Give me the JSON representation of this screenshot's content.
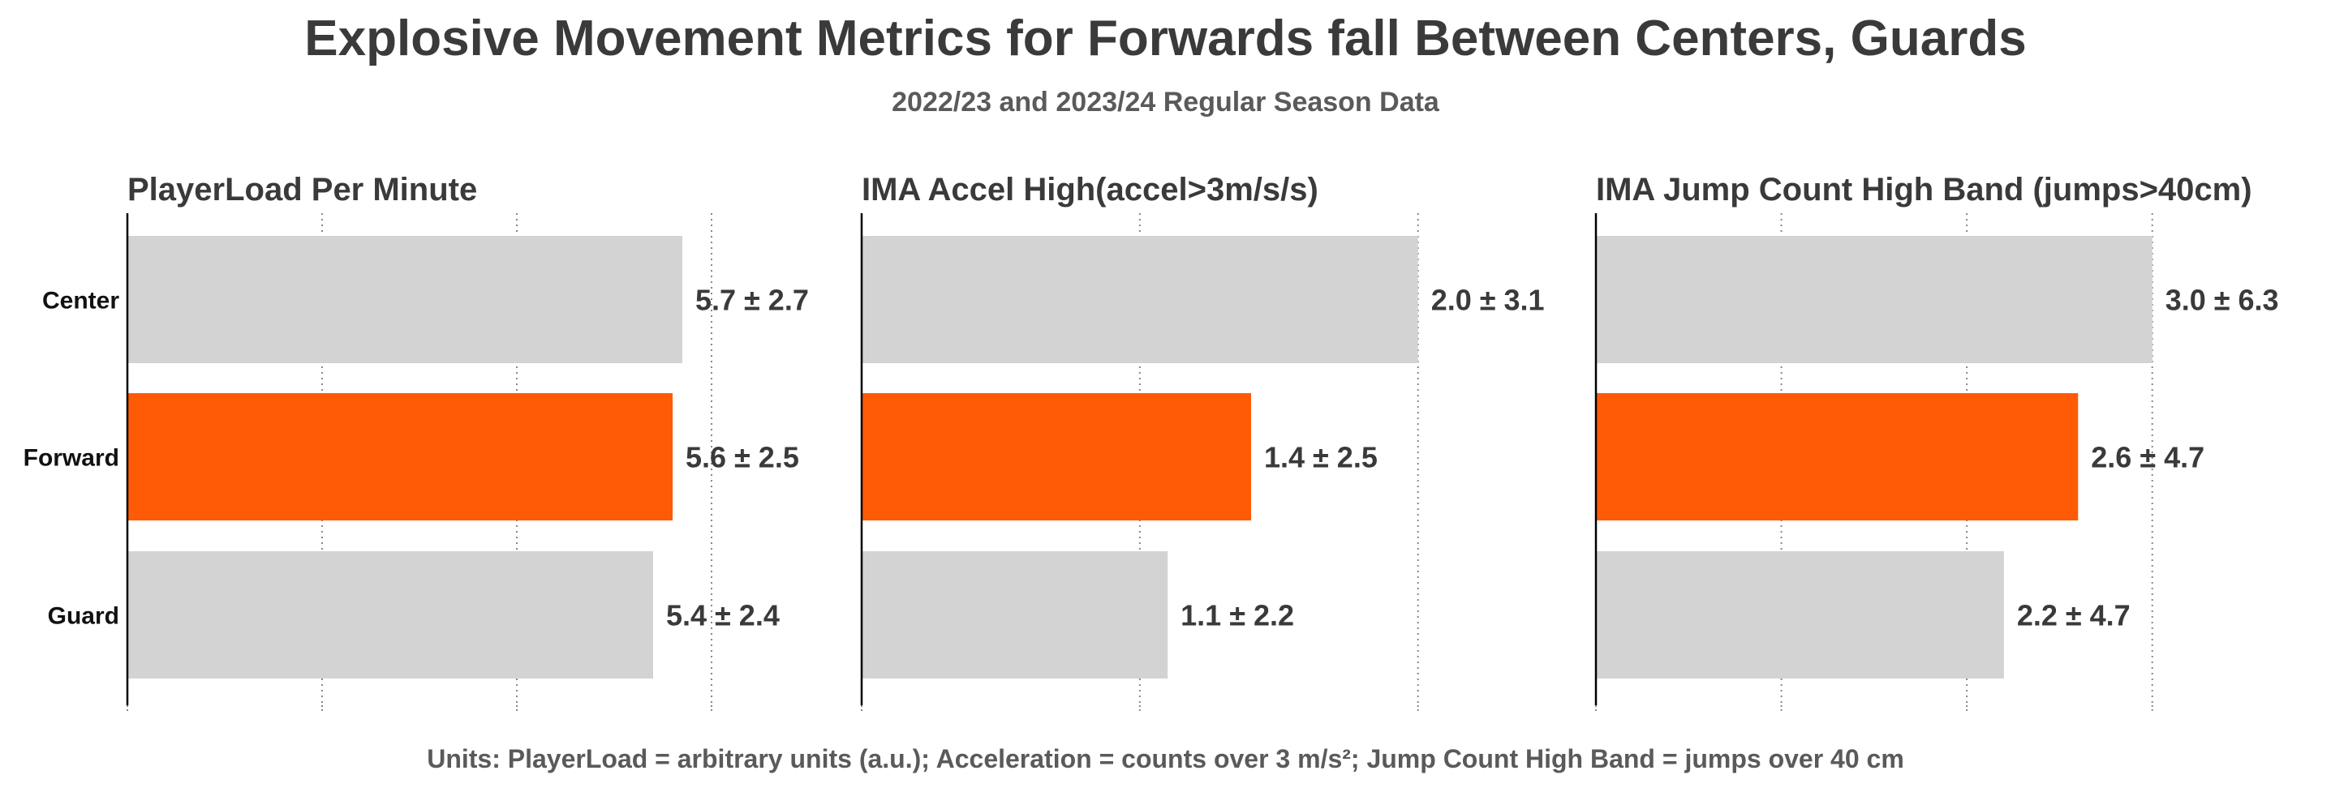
{
  "title": "Explosive Movement Metrics for Forwards fall Between Centers, Guards",
  "subtitle": "2022/23 and 2023/24 Regular Season Data",
  "footer": "Units: PlayerLoad = arbitrary units (a.u.); Acceleration = counts over 3 m/s²; Jump Count High Band = jumps over 40 cm",
  "colors": {
    "highlight": "#ff5a05",
    "default": "#d3d3d3",
    "axis": "#000000",
    "grid": "#888888"
  },
  "chart_data": [
    {
      "type": "bar",
      "orientation": "horizontal",
      "title": "PlayerLoad Per Minute",
      "categories": [
        "Center",
        "Forward",
        "Guard"
      ],
      "values": [
        5.7,
        5.6,
        5.4
      ],
      "sd": [
        2.7,
        2.5,
        2.4
      ],
      "labels": [
        "5.7 ± 2.7",
        "5.6 ± 2.5",
        "5.4 ± 2.4"
      ],
      "highlight": "Forward",
      "xlim": [
        0,
        6.0
      ],
      "gridlines": [
        2,
        4,
        6
      ],
      "grid": true
    },
    {
      "type": "bar",
      "orientation": "horizontal",
      "title": "IMA Accel High(accel>3m/s/s)",
      "categories": [
        "Center",
        "Forward",
        "Guard"
      ],
      "values": [
        2.0,
        1.4,
        1.1
      ],
      "sd": [
        3.1,
        2.5,
        2.2
      ],
      "labels": [
        "2.0 ± 3.1",
        "1.4 ± 2.5",
        "1.1 ± 2.2"
      ],
      "highlight": "Forward",
      "xlim": [
        0,
        2.1
      ],
      "gridlines": [
        1,
        2
      ],
      "grid": true
    },
    {
      "type": "bar",
      "orientation": "horizontal",
      "title": "IMA Jump Count High Band (jumps>40cm)",
      "categories": [
        "Center",
        "Forward",
        "Guard"
      ],
      "values": [
        3.0,
        2.6,
        2.2
      ],
      "sd": [
        6.3,
        4.7,
        4.7
      ],
      "labels": [
        "3.0 ± 6.3",
        "2.6 ± 4.7",
        "2.2 ± 4.7"
      ],
      "highlight": "Forward",
      "xlim": [
        0,
        3.15
      ],
      "gridlines": [
        1,
        2,
        3
      ],
      "grid": true
    }
  ]
}
